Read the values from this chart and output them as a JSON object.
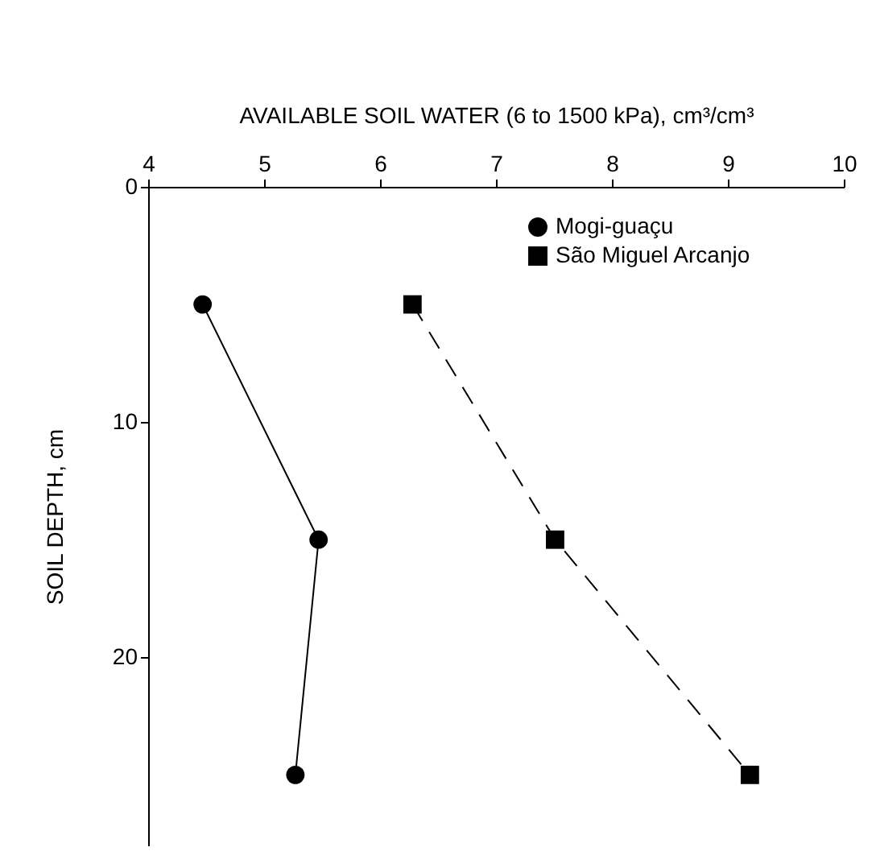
{
  "chart_data": {
    "type": "line",
    "xlabel": "AVAILABLE SOIL WATER (6 to 1500 kPa), cm³/cm³",
    "ylabel": "SOIL DEPTH, cm",
    "xlim": [
      4,
      10
    ],
    "xticks": [
      4,
      5,
      6,
      7,
      8,
      9,
      10
    ],
    "ylim": [
      28,
      0
    ],
    "yticks": [
      0,
      10,
      20
    ],
    "grid": false,
    "legend": "top right",
    "series": [
      {
        "name": "Mogi-guaçu",
        "color": "#000000",
        "marker": "circle",
        "line_style": "solid",
        "x": [
          4.47,
          5.47,
          5.27
        ],
        "values": [
          5,
          15,
          25
        ]
      },
      {
        "name": "São Miguel Arcanjo",
        "color": "#000000",
        "marker": "square",
        "line_style": "dashed",
        "x": [
          6.28,
          7.51,
          9.19
        ],
        "values": [
          5,
          15,
          25
        ]
      }
    ]
  }
}
